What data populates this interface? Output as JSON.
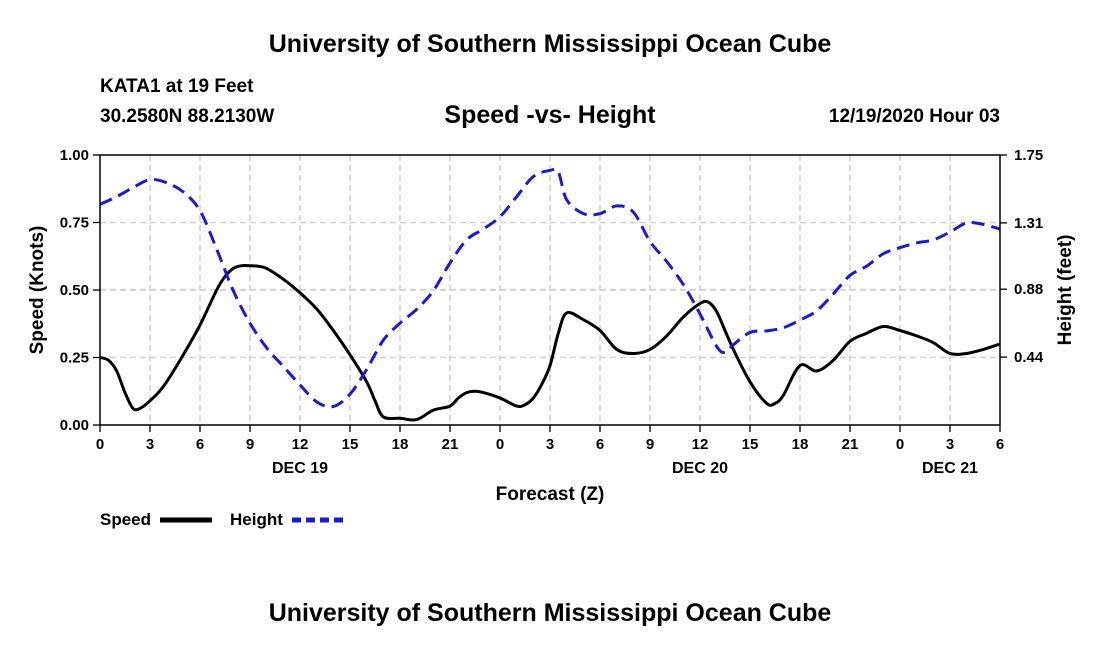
{
  "header": {
    "title": "University of Southern Mississippi Ocean Cube",
    "station": "KATA1 at 19 Feet",
    "coords": "30.2580N 88.2130W",
    "chart_title": "Speed -vs- Height",
    "datetime": "12/19/2020 Hour 03"
  },
  "footer": {
    "title": "University of Southern Mississippi Ocean Cube"
  },
  "colors": {
    "speed": "#000000",
    "height": "#1a1ad0",
    "grid": "#b4b4b4"
  },
  "chart_data": {
    "type": "line",
    "title": "Speed -vs- Height",
    "xlabel": "Forecast (Z)",
    "ylabel": "Speed (Knots)",
    "y2label": "Height (feet)",
    "xlim": [
      0,
      54
    ],
    "ylim": [
      0,
      1
    ],
    "y2lim": [
      0,
      1.75
    ],
    "x_ticks": [
      0,
      3,
      6,
      9,
      12,
      15,
      18,
      21,
      24,
      27,
      30,
      33,
      36,
      39,
      42,
      45,
      48,
      51,
      54
    ],
    "x_tick_labels": [
      "0",
      "3",
      "6",
      "9",
      "12",
      "15",
      "18",
      "21",
      "0",
      "3",
      "6",
      "9",
      "12",
      "15",
      "18",
      "21",
      "0",
      "3",
      "6"
    ],
    "y_ticks": [
      0,
      0.25,
      0.5,
      0.75,
      1
    ],
    "y_tick_labels": [
      "0.00",
      "0.25",
      "0.50",
      "0.75",
      "1.00"
    ],
    "y2_ticks": [
      0.44,
      0.88,
      1.31,
      1.75
    ],
    "y2_tick_labels": [
      "0.44",
      "0.88",
      "1.31",
      "1.75"
    ],
    "date_labels": [
      {
        "x": 12,
        "label": "DEC 19"
      },
      {
        "x": 36,
        "label": "DEC 20"
      },
      {
        "x": 51,
        "label": "DEC 21"
      }
    ],
    "legend": {
      "position": "bottom-left",
      "entries": [
        "Speed",
        "Height"
      ]
    },
    "grid": true,
    "series": [
      {
        "name": "Speed",
        "axis": "left",
        "x": [
          0,
          0.5,
          1,
          1.5,
          2,
          2.5,
          3,
          3.5,
          4,
          5,
          6,
          7,
          7.5,
          8,
          8.5,
          9,
          9.5,
          10,
          11,
          12,
          13,
          14,
          15,
          16,
          16.5,
          17,
          18,
          19,
          20,
          21,
          21.5,
          22,
          22.5,
          23,
          24,
          25,
          25.5,
          26,
          26.5,
          27,
          27.5,
          28,
          29,
          30,
          31,
          32,
          33,
          34,
          35,
          36,
          36.5,
          37,
          37.5,
          38,
          39,
          40,
          40.5,
          41,
          42,
          43,
          44,
          45,
          46,
          47,
          48,
          49,
          50,
          51,
          52,
          53,
          54
        ],
        "y": [
          0.25,
          0.24,
          0.2,
          0.12,
          0.06,
          0.065,
          0.09,
          0.12,
          0.16,
          0.26,
          0.37,
          0.5,
          0.55,
          0.58,
          0.59,
          0.59,
          0.588,
          0.58,
          0.54,
          0.49,
          0.43,
          0.35,
          0.26,
          0.16,
          0.09,
          0.03,
          0.025,
          0.02,
          0.055,
          0.07,
          0.1,
          0.12,
          0.125,
          0.12,
          0.1,
          0.07,
          0.075,
          0.1,
          0.15,
          0.22,
          0.34,
          0.415,
          0.39,
          0.35,
          0.28,
          0.265,
          0.28,
          0.33,
          0.4,
          0.45,
          0.455,
          0.42,
          0.35,
          0.28,
          0.16,
          0.08,
          0.08,
          0.11,
          0.22,
          0.2,
          0.24,
          0.31,
          0.34,
          0.365,
          0.35,
          0.33,
          0.305,
          0.265,
          0.265,
          0.28,
          0.3
        ]
      },
      {
        "name": "Height",
        "axis": "right",
        "x": [
          0,
          1,
          2,
          3,
          4,
          5,
          6,
          7,
          8,
          9,
          10,
          11,
          12,
          13,
          14,
          15,
          16,
          17,
          18,
          19,
          20,
          21,
          22,
          23,
          24,
          25,
          26,
          27,
          27.5,
          28,
          29,
          30,
          31,
          32,
          33,
          34,
          35,
          36,
          37,
          37.5,
          38,
          39,
          40,
          41,
          42,
          43,
          44,
          45,
          46,
          47,
          48,
          49,
          50,
          51,
          52,
          53,
          54
        ],
        "y": [
          1.43,
          1.48,
          1.54,
          1.59,
          1.57,
          1.51,
          1.39,
          1.14,
          0.87,
          0.66,
          0.5,
          0.38,
          0.26,
          0.15,
          0.12,
          0.2,
          0.36,
          0.55,
          0.66,
          0.75,
          0.87,
          1.05,
          1.2,
          1.27,
          1.35,
          1.48,
          1.61,
          1.65,
          1.64,
          1.46,
          1.37,
          1.37,
          1.42,
          1.38,
          1.19,
          1.06,
          0.91,
          0.72,
          0.51,
          0.47,
          0.52,
          0.6,
          0.61,
          0.63,
          0.68,
          0.74,
          0.85,
          0.97,
          1.03,
          1.11,
          1.15,
          1.18,
          1.2,
          1.25,
          1.31,
          1.3,
          1.27
        ]
      }
    ]
  }
}
